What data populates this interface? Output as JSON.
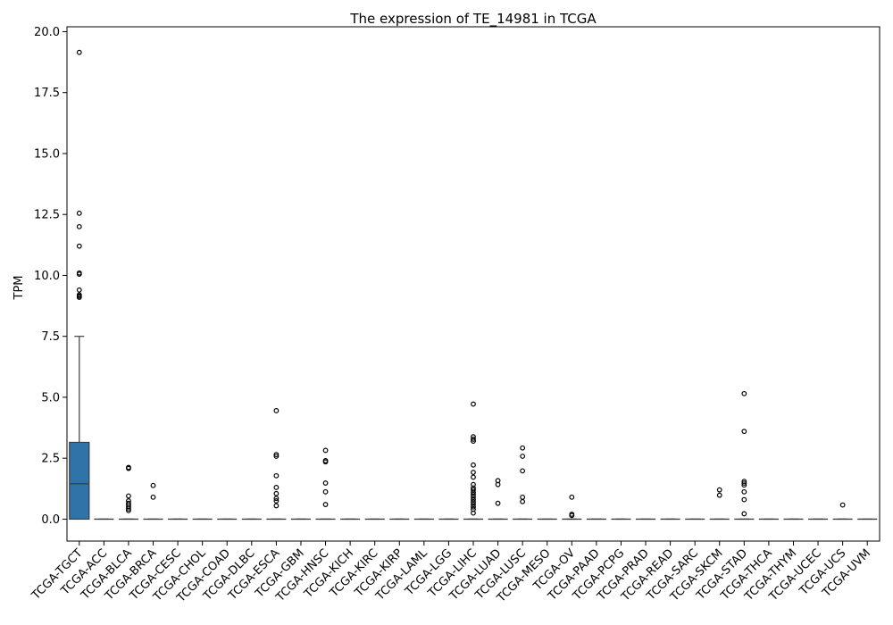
{
  "chart_data": {
    "type": "box",
    "title": "The expression of TE_14981 in TCGA",
    "ylabel": "TPM",
    "xlabel": "",
    "ylim": [
      -0.9,
      20.2
    ],
    "yticks": [
      0.0,
      2.5,
      5.0,
      7.5,
      10.0,
      12.5,
      15.0,
      17.5,
      20.0
    ],
    "ytick_labels": [
      "0.0",
      "2.5",
      "5.0",
      "7.5",
      "10.0",
      "12.5",
      "15.0",
      "17.5",
      "20.0"
    ],
    "grid": false,
    "colors": {
      "box_fill": "#2e74aa",
      "line": "#3f3f3f"
    },
    "categories": [
      "TCGA-TGCT",
      "TCGA-ACC",
      "TCGA-BLCA",
      "TCGA-BRCA",
      "TCGA-CESC",
      "TCGA-CHOL",
      "TCGA-COAD",
      "TCGA-DLBC",
      "TCGA-ESCA",
      "TCGA-GBM",
      "TCGA-HNSC",
      "TCGA-KICH",
      "TCGA-KIRC",
      "TCGA-KIRP",
      "TCGA-LAML",
      "TCGA-LGG",
      "TCGA-LIHC",
      "TCGA-LUAD",
      "TCGA-LUSC",
      "TCGA-MESO",
      "TCGA-OV",
      "TCGA-PAAD",
      "TCGA-PCPG",
      "TCGA-PRAD",
      "TCGA-READ",
      "TCGA-SARC",
      "TCGA-SKCM",
      "TCGA-STAD",
      "TCGA-THCA",
      "TCGA-THYM",
      "TCGA-UCEC",
      "TCGA-UCS",
      "TCGA-UVM"
    ],
    "boxes": [
      {
        "q1": 0.0,
        "median": 1.45,
        "q3": 3.15,
        "whisker_low": 0.0,
        "whisker_high": 7.5,
        "outliers": [
          9.1,
          9.15,
          9.2,
          9.4,
          10.05,
          10.1,
          11.2,
          12.0,
          12.55,
          19.15
        ]
      },
      {
        "q1": 0,
        "median": 0,
        "q3": 0,
        "whisker_low": 0,
        "whisker_high": 0,
        "outliers": []
      },
      {
        "q1": 0,
        "median": 0,
        "q3": 0,
        "whisker_low": 0,
        "whisker_high": 0,
        "outliers": [
          0.35,
          0.42,
          0.5,
          0.58,
          0.65,
          0.75,
          0.95,
          2.08,
          2.12
        ]
      },
      {
        "q1": 0,
        "median": 0,
        "q3": 0,
        "whisker_low": 0,
        "whisker_high": 0,
        "outliers": [
          0.9,
          1.38
        ]
      },
      {
        "q1": 0,
        "median": 0,
        "q3": 0,
        "whisker_low": 0,
        "whisker_high": 0,
        "outliers": []
      },
      {
        "q1": 0,
        "median": 0,
        "q3": 0,
        "whisker_low": 0,
        "whisker_high": 0,
        "outliers": []
      },
      {
        "q1": 0,
        "median": 0,
        "q3": 0,
        "whisker_low": 0,
        "whisker_high": 0,
        "outliers": []
      },
      {
        "q1": 0,
        "median": 0,
        "q3": 0,
        "whisker_low": 0,
        "whisker_high": 0,
        "outliers": []
      },
      {
        "q1": 0,
        "median": 0,
        "q3": 0,
        "whisker_low": 0,
        "whisker_high": 0,
        "outliers": [
          0.55,
          0.75,
          0.85,
          1.05,
          1.3,
          1.78,
          2.58,
          2.65,
          4.45
        ]
      },
      {
        "q1": 0,
        "median": 0,
        "q3": 0,
        "whisker_low": 0,
        "whisker_high": 0,
        "outliers": []
      },
      {
        "q1": 0,
        "median": 0,
        "q3": 0,
        "whisker_low": 0,
        "whisker_high": 0,
        "outliers": [
          0.6,
          1.12,
          1.48,
          2.35,
          2.4,
          2.82
        ]
      },
      {
        "q1": 0,
        "median": 0,
        "q3": 0,
        "whisker_low": 0,
        "whisker_high": 0,
        "outliers": []
      },
      {
        "q1": 0,
        "median": 0,
        "q3": 0,
        "whisker_low": 0,
        "whisker_high": 0,
        "outliers": []
      },
      {
        "q1": 0,
        "median": 0,
        "q3": 0,
        "whisker_low": 0,
        "whisker_high": 0,
        "outliers": []
      },
      {
        "q1": 0,
        "median": 0,
        "q3": 0,
        "whisker_low": 0,
        "whisker_high": 0,
        "outliers": []
      },
      {
        "q1": 0,
        "median": 0,
        "q3": 0,
        "whisker_low": 0,
        "whisker_high": 0,
        "outliers": []
      },
      {
        "q1": 0,
        "median": 0,
        "q3": 0,
        "whisker_low": 0,
        "whisker_high": 0,
        "outliers": [
          0.25,
          0.4,
          0.5,
          0.6,
          0.7,
          0.8,
          0.9,
          1.0,
          1.1,
          1.2,
          1.28,
          1.42,
          1.72,
          1.92,
          2.22,
          3.2,
          3.28,
          3.38,
          4.72
        ]
      },
      {
        "q1": 0,
        "median": 0,
        "q3": 0,
        "whisker_low": 0,
        "whisker_high": 0,
        "outliers": [
          0.65,
          1.42,
          1.58
        ]
      },
      {
        "q1": 0,
        "median": 0,
        "q3": 0,
        "whisker_low": 0,
        "whisker_high": 0,
        "outliers": [
          0.72,
          0.9,
          1.98,
          2.58,
          2.92
        ]
      },
      {
        "q1": 0,
        "median": 0,
        "q3": 0,
        "whisker_low": 0,
        "whisker_high": 0,
        "outliers": []
      },
      {
        "q1": 0,
        "median": 0,
        "q3": 0,
        "whisker_low": 0,
        "whisker_high": 0,
        "outliers": [
          0.15,
          0.2,
          0.9
        ]
      },
      {
        "q1": 0,
        "median": 0,
        "q3": 0,
        "whisker_low": 0,
        "whisker_high": 0,
        "outliers": []
      },
      {
        "q1": 0,
        "median": 0,
        "q3": 0,
        "whisker_low": 0,
        "whisker_high": 0,
        "outliers": []
      },
      {
        "q1": 0,
        "median": 0,
        "q3": 0,
        "whisker_low": 0,
        "whisker_high": 0,
        "outliers": []
      },
      {
        "q1": 0,
        "median": 0,
        "q3": 0,
        "whisker_low": 0,
        "whisker_high": 0,
        "outliers": []
      },
      {
        "q1": 0,
        "median": 0,
        "q3": 0,
        "whisker_low": 0,
        "whisker_high": 0,
        "outliers": []
      },
      {
        "q1": 0,
        "median": 0,
        "q3": 0,
        "whisker_low": 0,
        "whisker_high": 0,
        "outliers": [
          0.98,
          1.2
        ]
      },
      {
        "q1": 0,
        "median": 0,
        "q3": 0,
        "whisker_low": 0,
        "whisker_high": 0,
        "outliers": [
          0.22,
          0.8,
          1.12,
          1.4,
          1.48,
          1.55,
          3.6,
          5.15
        ]
      },
      {
        "q1": 0,
        "median": 0,
        "q3": 0,
        "whisker_low": 0,
        "whisker_high": 0,
        "outliers": []
      },
      {
        "q1": 0,
        "median": 0,
        "q3": 0,
        "whisker_low": 0,
        "whisker_high": 0,
        "outliers": []
      },
      {
        "q1": 0,
        "median": 0,
        "q3": 0,
        "whisker_low": 0,
        "whisker_high": 0,
        "outliers": []
      },
      {
        "q1": 0,
        "median": 0,
        "q3": 0,
        "whisker_low": 0,
        "whisker_high": 0,
        "outliers": [
          0.58
        ]
      },
      {
        "q1": 0,
        "median": 0,
        "q3": 0,
        "whisker_low": 0,
        "whisker_high": 0,
        "outliers": []
      }
    ]
  }
}
